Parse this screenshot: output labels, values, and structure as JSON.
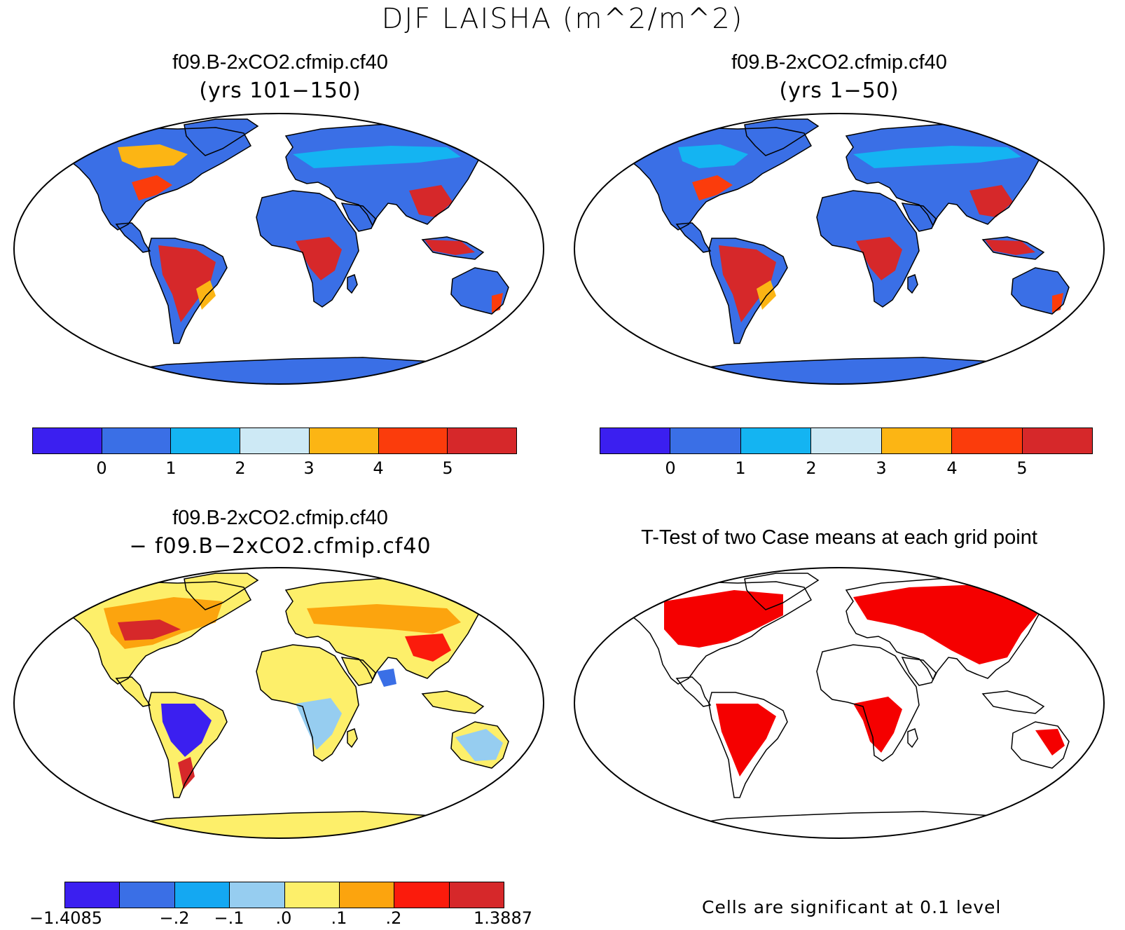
{
  "title": "DJF LAISHA (m^2/m^2)",
  "panels": {
    "p1": {
      "title": "f09.B-2xCO2.cfmip.cf40",
      "subtitle": "(yrs 101−150)"
    },
    "p2": {
      "title": "f09.B-2xCO2.cfmip.cf40",
      "subtitle": "(yrs 1−50)"
    },
    "p3": {
      "title": "f09.B-2xCO2.cfmip.cf40",
      "subtitle": "− f09.B−2xCO2.cfmip.cf40"
    },
    "p4": {
      "title": "T-Test of two Case means at each grid point",
      "note": "Cells are significant at 0.1 level"
    }
  },
  "colorbars": {
    "abs": {
      "colors": [
        "#3b1ff0",
        "#3a6fe6",
        "#14b4f2",
        "#cde9f5",
        "#fcb514",
        "#fb3c0c",
        "#d6282a"
      ],
      "ticks": [
        "0",
        "1",
        "2",
        "3",
        "4",
        "5"
      ]
    },
    "diff": {
      "colors": [
        "#3b1ff0",
        "#3a6fe6",
        "#14a8f2",
        "#96cdf0",
        "#fdef6a",
        "#fca40e",
        "#fb1b0c",
        "#d6282a"
      ],
      "ticks": [
        "−1.4085",
        "−.2",
        "−.1",
        ".0",
        ".1",
        ".2",
        "1.3887"
      ]
    },
    "ttest": {
      "color": "#f50000"
    }
  },
  "ocean_color": "#ffffff",
  "land_outline_color": "#000000"
}
